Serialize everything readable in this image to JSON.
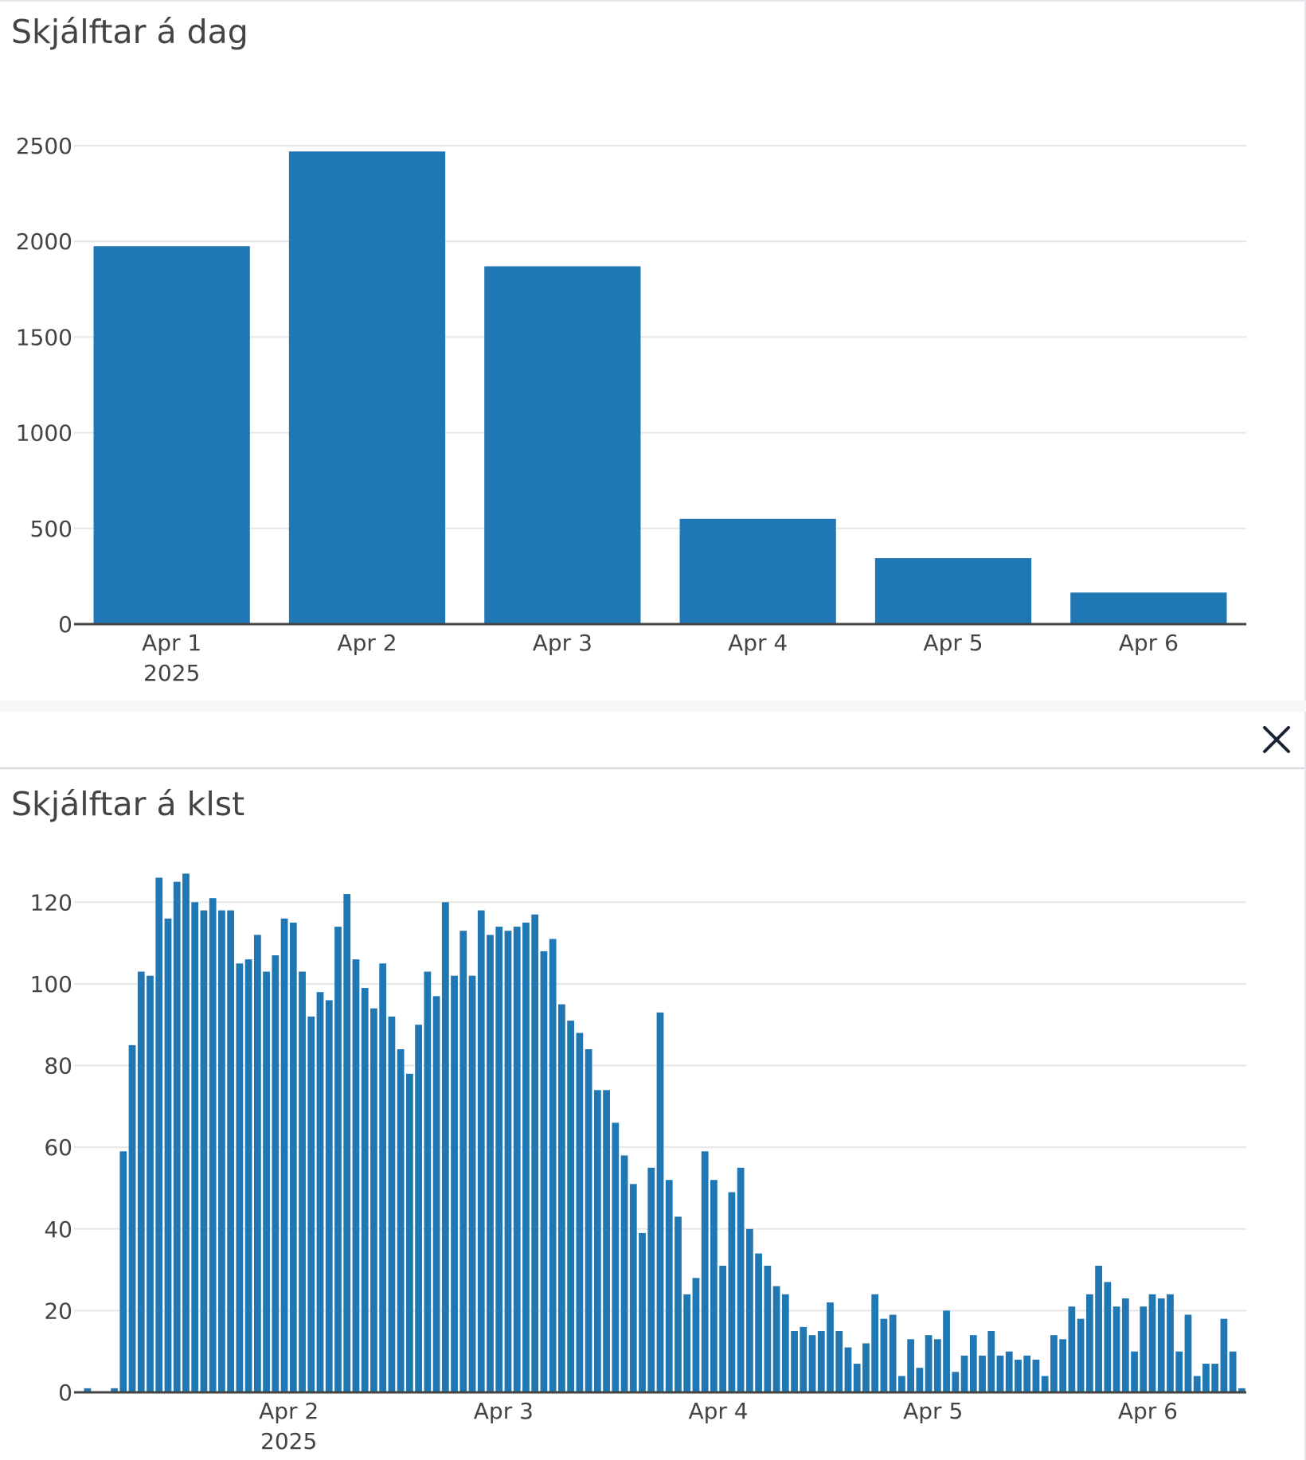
{
  "colors": {
    "bar": "#1f77b4",
    "grid": "#e6e6e6",
    "axis": "#444444",
    "text": "#444444"
  },
  "close_icon": "close-icon",
  "chart_data": [
    {
      "type": "bar",
      "title": "Skjálftar á dag",
      "categories": [
        "Apr 1",
        "Apr 2",
        "Apr 3",
        "Apr 4",
        "Apr 5",
        "Apr 6"
      ],
      "tick_sublabels": [
        "2025",
        "",
        "",
        "",
        "",
        ""
      ],
      "values": [
        1975,
        2470,
        1870,
        550,
        345,
        165
      ],
      "ylim": [
        0,
        2650
      ],
      "yticks": [
        0,
        500,
        1000,
        1500,
        2000,
        2500
      ],
      "xlabel": "",
      "ylabel": "",
      "grid": true
    },
    {
      "type": "bar",
      "title": "Skjálftar á klst",
      "x_unit": "hour",
      "x_start": "Apr 1 12:00",
      "x_end": "Apr 6 15:00",
      "xticks": [
        {
          "hour": 36,
          "label": "Apr 2",
          "sublabel": "2025"
        },
        {
          "hour": 60,
          "label": "Apr 3",
          "sublabel": ""
        },
        {
          "hour": 84,
          "label": "Apr 4",
          "sublabel": ""
        },
        {
          "hour": 108,
          "label": "Apr 5",
          "sublabel": ""
        },
        {
          "hour": 132,
          "label": "Apr 6",
          "sublabel": ""
        }
      ],
      "values": [
        0,
        1,
        0,
        0,
        1,
        59,
        85,
        103,
        102,
        126,
        116,
        125,
        127,
        120,
        118,
        121,
        118,
        118,
        105,
        106,
        112,
        103,
        107,
        116,
        115,
        103,
        92,
        98,
        96,
        114,
        122,
        106,
        99,
        94,
        105,
        92,
        84,
        78,
        90,
        103,
        97,
        120,
        102,
        113,
        102,
        118,
        112,
        114,
        113,
        114,
        115,
        117,
        108,
        111,
        95,
        91,
        88,
        84,
        74,
        74,
        66,
        58,
        51,
        39,
        55,
        93,
        52,
        43,
        24,
        28,
        59,
        52,
        31,
        49,
        55,
        40,
        34,
        31,
        26,
        24,
        15,
        16,
        14,
        15,
        22,
        15,
        11,
        7,
        12,
        24,
        18,
        19,
        4,
        13,
        6,
        14,
        13,
        20,
        5,
        9,
        14,
        9,
        15,
        9,
        10,
        8,
        9,
        8,
        4,
        14,
        13,
        21,
        18,
        24,
        31,
        27,
        21,
        23,
        10,
        21,
        24,
        23,
        24,
        10,
        19,
        4,
        7,
        7,
        18,
        10,
        1
      ],
      "ylim": [
        0,
        130
      ],
      "yticks": [
        0,
        20,
        40,
        60,
        80,
        100,
        120
      ],
      "xlabel": "",
      "ylabel": "",
      "grid": true
    }
  ]
}
